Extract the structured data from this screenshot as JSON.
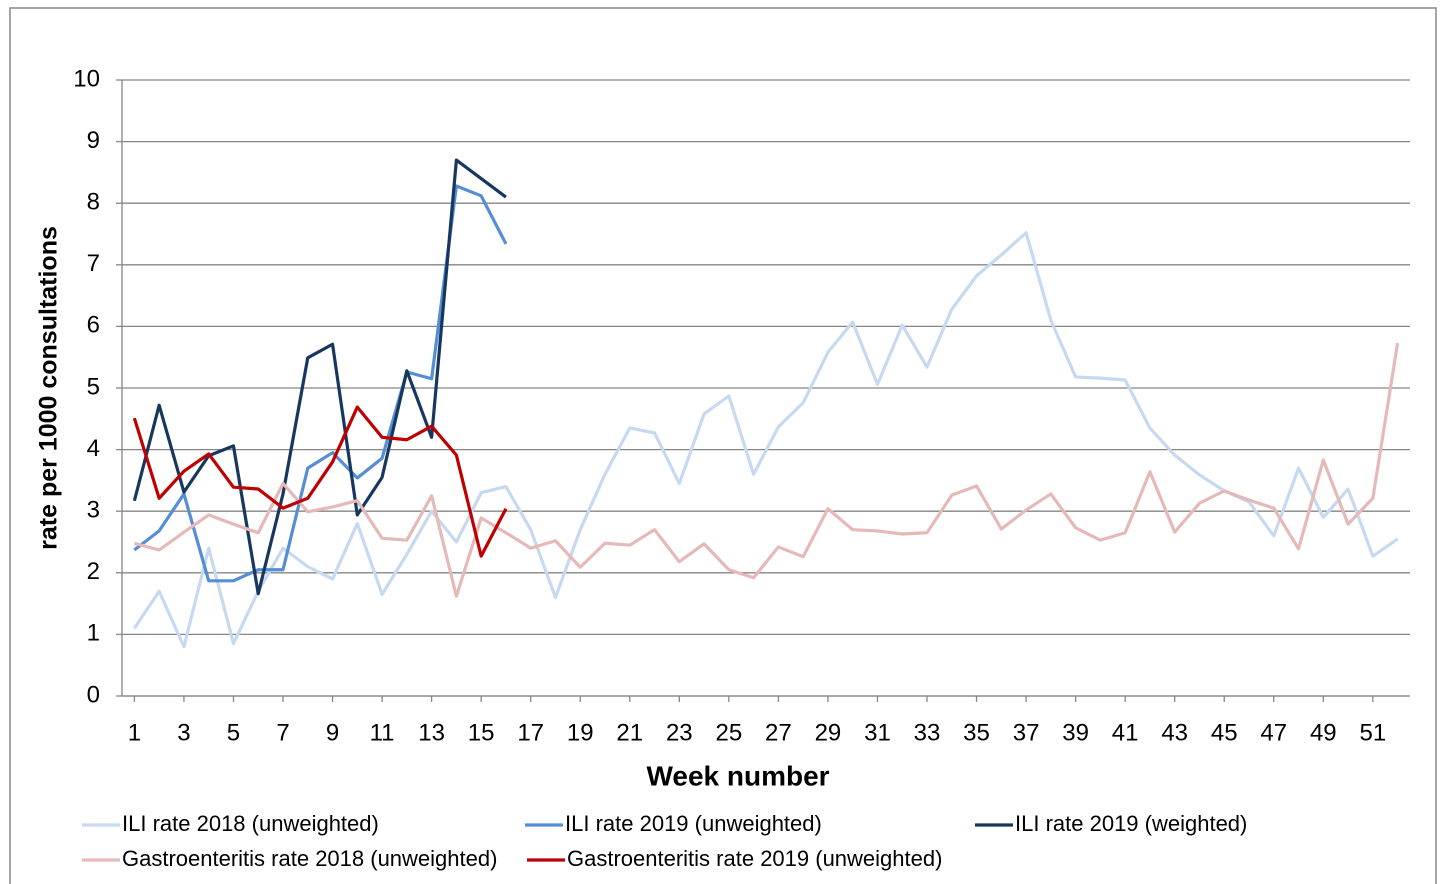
{
  "chart_data": {
    "type": "line",
    "xlabel": "Week number",
    "ylabel": "rate per 1000 consultations",
    "x": [
      1,
      2,
      3,
      4,
      5,
      6,
      7,
      8,
      9,
      10,
      11,
      12,
      13,
      14,
      15,
      16,
      17,
      18,
      19,
      20,
      21,
      22,
      23,
      24,
      25,
      26,
      27,
      28,
      29,
      30,
      31,
      32,
      33,
      34,
      35,
      36,
      37,
      38,
      39,
      40,
      41,
      42,
      43,
      44,
      45,
      46,
      47,
      48,
      49,
      50,
      51,
      52
    ],
    "xlim": [
      0.5,
      52.5
    ],
    "xticks": [
      1,
      3,
      5,
      7,
      9,
      11,
      13,
      15,
      17,
      19,
      21,
      23,
      25,
      27,
      29,
      31,
      33,
      35,
      37,
      39,
      41,
      43,
      45,
      47,
      49,
      51
    ],
    "ylim": [
      0,
      10
    ],
    "yticks": [
      0,
      1,
      2,
      3,
      4,
      5,
      6,
      7,
      8,
      9,
      10
    ],
    "grid": true,
    "legend": "bottom",
    "series": [
      {
        "name": "ILI rate 2018 (unweighted)",
        "color": "#c6d9f0",
        "values": [
          1.1,
          1.7,
          0.8,
          2.4,
          0.85,
          1.7,
          2.4,
          2.1,
          1.9,
          2.8,
          1.65,
          2.3,
          3.0,
          2.5,
          3.3,
          3.4,
          2.7,
          1.6,
          2.7,
          3.6,
          4.35,
          4.27,
          3.45,
          4.58,
          4.87,
          3.6,
          4.37,
          4.76,
          5.58,
          6.07,
          5.06,
          6.02,
          5.34,
          6.28,
          6.82,
          7.16,
          7.52,
          6.1,
          5.18,
          5.16,
          5.13,
          4.35,
          3.91,
          3.59,
          3.33,
          3.15,
          2.6,
          3.7,
          2.9,
          3.36,
          2.27,
          2.55
        ]
      },
      {
        "name": "ILI rate 2019 (unweighted)",
        "color": "#558ed5",
        "values": [
          2.37,
          2.68,
          3.28,
          1.87,
          1.87,
          2.05,
          2.05,
          3.7,
          3.95,
          3.54,
          3.86,
          5.26,
          5.15,
          8.28,
          8.12,
          7.34,
          null,
          null,
          null,
          null,
          null,
          null,
          null,
          null,
          null,
          null,
          null,
          null,
          null,
          null,
          null,
          null,
          null,
          null,
          null,
          null,
          null,
          null,
          null,
          null,
          null,
          null,
          null,
          null,
          null,
          null,
          null,
          null,
          null,
          null,
          null,
          null
        ]
      },
      {
        "name": "ILI rate 2019 (weighted)",
        "color": "#17375e",
        "values": [
          3.17,
          4.72,
          3.31,
          3.9,
          4.06,
          1.66,
          3.28,
          5.49,
          5.71,
          2.94,
          3.55,
          5.28,
          4.2,
          8.7,
          8.4,
          8.1,
          null,
          null,
          null,
          null,
          null,
          null,
          null,
          null,
          null,
          null,
          null,
          null,
          null,
          null,
          null,
          null,
          null,
          null,
          null,
          null,
          null,
          null,
          null,
          null,
          null,
          null,
          null,
          null,
          null,
          null,
          null,
          null,
          null,
          null,
          null,
          null
        ]
      },
      {
        "name": "Gastroenteritis rate 2018 (unweighted)",
        "color": "#e6b9b8",
        "values": [
          2.48,
          2.37,
          2.66,
          2.94,
          2.79,
          2.65,
          3.45,
          2.99,
          3.07,
          3.17,
          2.56,
          2.53,
          3.25,
          1.62,
          2.89,
          2.65,
          2.4,
          2.52,
          2.09,
          2.48,
          2.45,
          2.7,
          2.18,
          2.47,
          2.05,
          1.92,
          2.42,
          2.26,
          3.04,
          2.7,
          2.68,
          2.63,
          2.65,
          3.26,
          3.41,
          2.71,
          3.02,
          3.28,
          2.73,
          2.53,
          2.65,
          3.64,
          2.66,
          3.13,
          3.33,
          3.18,
          3.05,
          2.39,
          3.83,
          2.79,
          3.21,
          5.73
        ]
      },
      {
        "name": "Gastroenteritis rate 2019 (unweighted)",
        "color": "#c00000",
        "values": [
          4.51,
          3.21,
          3.65,
          3.93,
          3.39,
          3.36,
          3.05,
          3.21,
          3.8,
          4.69,
          4.2,
          4.16,
          4.38,
          3.91,
          2.27,
          3.04,
          null,
          null,
          null,
          null,
          null,
          null,
          null,
          null,
          null,
          null,
          null,
          null,
          null,
          null,
          null,
          null,
          null,
          null,
          null,
          null,
          null,
          null,
          null,
          null,
          null,
          null,
          null,
          null,
          null,
          null,
          null,
          null,
          null,
          null,
          null,
          null
        ]
      }
    ]
  }
}
